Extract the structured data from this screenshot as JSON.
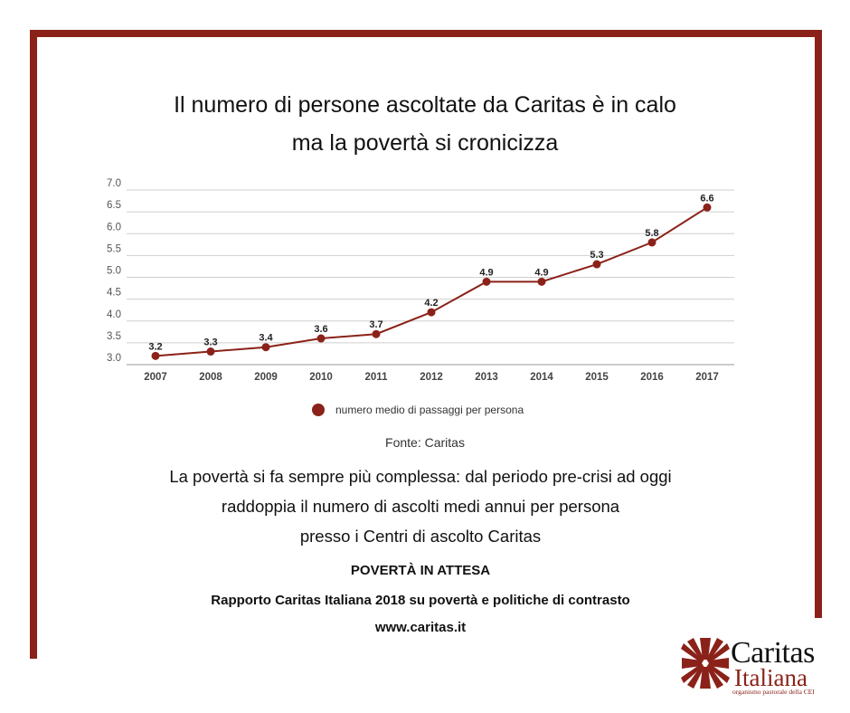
{
  "title": {
    "line1": "Il numero di persone ascoltate da Caritas è in calo",
    "line2": "ma la povertà si cronicizza"
  },
  "chart_data": {
    "type": "line",
    "categories": [
      "2007",
      "2008",
      "2009",
      "2010",
      "2011",
      "2012",
      "2013",
      "2014",
      "2015",
      "2016",
      "2017"
    ],
    "series": [
      {
        "name": "numero medio di passaggi per persona",
        "values": [
          3.2,
          3.3,
          3.4,
          3.6,
          3.7,
          4.2,
          4.9,
          4.9,
          5.3,
          5.8,
          6.6
        ]
      }
    ],
    "data_labels": [
      "3.2",
      "3.3",
      "3.4",
      "3.6",
      "3.7",
      "4.2",
      "4.9",
      "4.9",
      "5.3",
      "5.8",
      "6.6"
    ],
    "y_ticks": [
      "3.0",
      "3.5",
      "4.0",
      "4.5",
      "5.0",
      "5.5",
      "6.0",
      "6.5",
      "7.0"
    ],
    "ylim": [
      3.0,
      7.0
    ],
    "grid": true,
    "legend_position": "bottom",
    "line_color": "#8b2219"
  },
  "legend": {
    "label": "numero medio di passaggi per persona"
  },
  "source": "Fonte: Caritas",
  "description": {
    "line1": "La povertà si fa sempre più complessa: dal periodo pre-crisi ad oggi",
    "line2": "raddoppia il numero di ascolti medi annui per persona",
    "line3": "presso i Centri di ascolto Caritas"
  },
  "report": {
    "title": "POVERTÀ IN ATTESA",
    "subtitle": "Rapporto Caritas Italiana 2018 su povertà e politiche di contrasto",
    "url": "www.caritas.it"
  },
  "logo": {
    "name": "Caritas",
    "sub": "Italiana",
    "tag": "organismo pastorale della CEI",
    "icon": "caritas-cross-icon"
  },
  "colors": {
    "accent": "#8b2219"
  }
}
